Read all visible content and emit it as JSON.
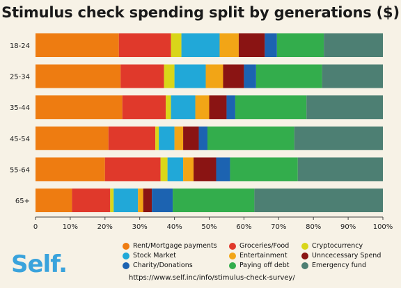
{
  "chart_data": {
    "type": "bar",
    "orientation": "horizontal",
    "stacked": true,
    "title": "Stimulus check spending split by generations ($)",
    "categories": [
      "18-24",
      "25-34",
      "35-44",
      "45-54",
      "55-64",
      "65+"
    ],
    "xlim": [
      0,
      100
    ],
    "x_ticks": [
      "0",
      "10%",
      "20%",
      "30%",
      "40%",
      "50%",
      "60%",
      "70%",
      "80%",
      "90%",
      "100%"
    ],
    "grid": false,
    "legend_position": "bottom-right",
    "series": [
      {
        "name": "Rent/Mortgage payments",
        "color": "#ee7c11",
        "values": [
          24,
          24.5,
          25,
          21,
          20,
          10.5
        ]
      },
      {
        "name": "Groceries/Food",
        "color": "#e0392b",
        "values": [
          15,
          12.5,
          12.5,
          13.5,
          16,
          11
        ]
      },
      {
        "name": "Cryptocurrency",
        "color": "#d9d619",
        "values": [
          3,
          3,
          1.5,
          1,
          2,
          1
        ]
      },
      {
        "name": "Stock Market",
        "color": "#21a8d8",
        "values": [
          11,
          9,
          7,
          4.5,
          4.5,
          7
        ]
      },
      {
        "name": "Entertainment",
        "color": "#f2a516",
        "values": [
          5.5,
          5,
          4,
          2.5,
          3,
          1.5
        ]
      },
      {
        "name": "Unncecessary Spend",
        "color": "#8a1413",
        "values": [
          7.5,
          6,
          5,
          4.5,
          6.5,
          2.5
        ]
      },
      {
        "name": "Charity/Donations",
        "color": "#1c63b1",
        "values": [
          3.5,
          3.5,
          2.5,
          2.5,
          4,
          6
        ]
      },
      {
        "name": "Paying off debt",
        "color": "#33ad4c",
        "values": [
          13.5,
          19,
          20.5,
          25,
          19.5,
          23.5
        ]
      },
      {
        "name": "Emergency fund",
        "color": "#4d7f73",
        "values": [
          17,
          17.5,
          22,
          25.5,
          24.5,
          37
        ]
      }
    ]
  },
  "legend": {
    "items": [
      {
        "label": "Rent/Mortgage payments",
        "color": "#ee7c11"
      },
      {
        "label": "Groceries/Food",
        "color": "#e0392b"
      },
      {
        "label": "Cryptocurrency",
        "color": "#d9d619"
      },
      {
        "label": "Stock Market",
        "color": "#21a8d8"
      },
      {
        "label": "Entertainment",
        "color": "#f2a516"
      },
      {
        "label": "Unncecessary Spend",
        "color": "#8a1413"
      },
      {
        "label": "Charity/Donations",
        "color": "#1c63b1"
      },
      {
        "label": "Paying off debt",
        "color": "#33ad4c"
      },
      {
        "label": "Emergency fund",
        "color": "#4d7f73"
      }
    ]
  },
  "branding": {
    "logo_text": "Self.",
    "source_url": "https://www.self.inc/info/stimulus-check-survey/"
  }
}
